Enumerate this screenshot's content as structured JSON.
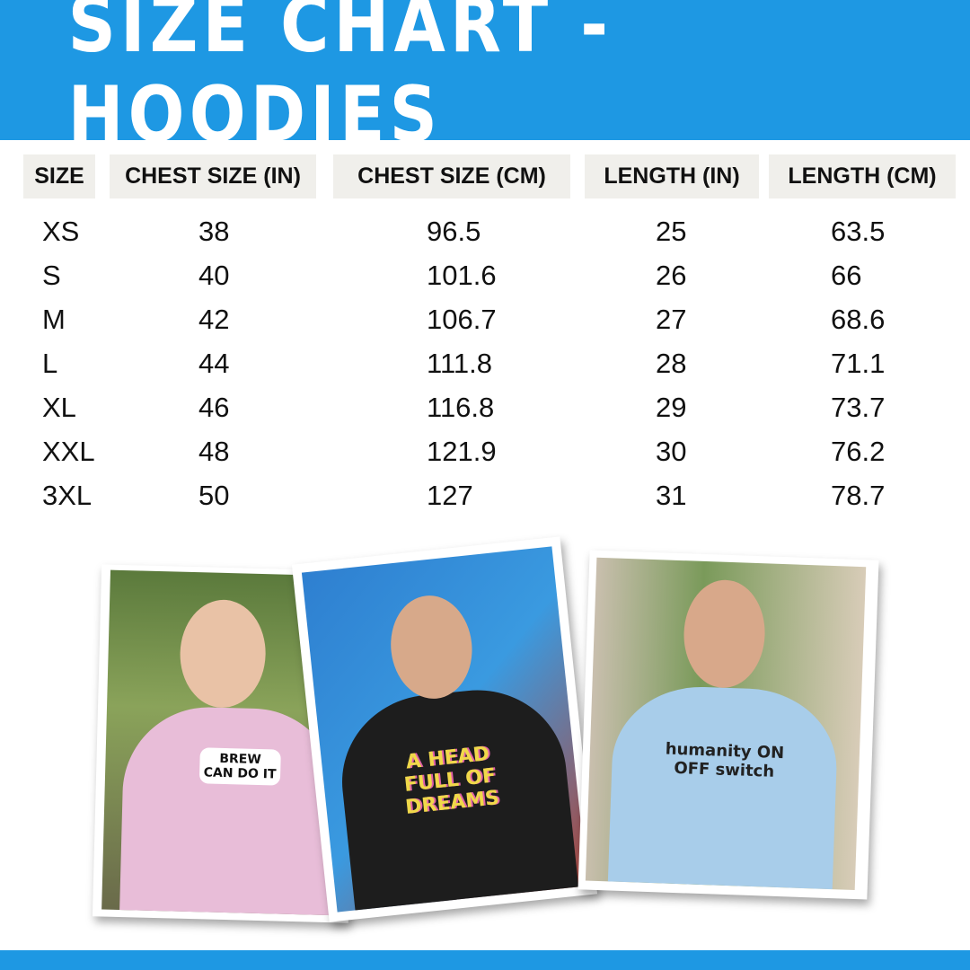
{
  "title": "SIZE CHART - HOODIES",
  "colors": {
    "brand": "#1e98e3",
    "header_cell": "#f0efeb"
  },
  "table": {
    "headers": [
      "SIZE",
      "CHEST SIZE (IN)",
      "CHEST SIZE (CM)",
      "LENGTH (IN)",
      "LENGTH (CM)"
    ],
    "rows": [
      [
        "XS",
        "38",
        "96.5",
        "25",
        "63.5"
      ],
      [
        "S",
        "40",
        "101.6",
        "26",
        "66"
      ],
      [
        "M",
        "42",
        "106.7",
        "27",
        "68.6"
      ],
      [
        "L",
        "44",
        "111.8",
        "28",
        "71.1"
      ],
      [
        "XL",
        "46",
        "116.8",
        "29",
        "73.7"
      ],
      [
        "XXL",
        "48",
        "121.9",
        "30",
        "76.2"
      ],
      [
        "3XL",
        "50",
        "127",
        "31",
        "78.7"
      ]
    ]
  },
  "photos": [
    {
      "hoodie_color": "#e8bdd8",
      "print": "BREW CAN DO IT"
    },
    {
      "hoodie_color": "#1d1d1d",
      "print": "A HEAD FULL OF DREAMS"
    },
    {
      "hoodie_color": "#a8cdea",
      "print": "humanity ON OFF switch"
    }
  ]
}
